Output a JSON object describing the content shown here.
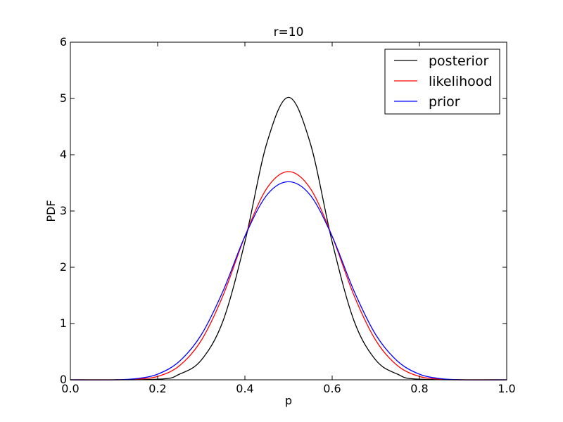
{
  "chart_data": {
    "type": "line",
    "title": "r=10",
    "xlabel": "p",
    "ylabel": "PDF",
    "xlim": [
      0.0,
      1.0
    ],
    "ylim": [
      0,
      6
    ],
    "x_ticks": [
      "0.0",
      "0.2",
      "0.4",
      "0.6",
      "0.8",
      "1.0"
    ],
    "y_ticks": [
      "0",
      "1",
      "2",
      "3",
      "4",
      "5",
      "6"
    ],
    "grid": false,
    "legend_position": "top-right",
    "series": [
      {
        "name": "posterior",
        "color": "#000000",
        "x": [
          0.0,
          0.2,
          0.25,
          0.3,
          0.35,
          0.4,
          0.45,
          0.5,
          0.55,
          0.6,
          0.65,
          0.7,
          0.75,
          0.8,
          1.0
        ],
        "y": [
          0.0,
          0.01,
          0.1,
          0.35,
          1.05,
          2.45,
          4.2,
          5.02,
          4.2,
          2.45,
          1.05,
          0.35,
          0.1,
          0.01,
          0.0
        ]
      },
      {
        "name": "likelihood",
        "color": "#ff0000",
        "x": [
          0.0,
          0.1,
          0.15,
          0.2,
          0.25,
          0.3,
          0.35,
          0.4,
          0.45,
          0.5,
          0.55,
          0.6,
          0.65,
          0.7,
          0.75,
          0.8,
          0.85,
          0.9,
          1.0
        ],
        "y": [
          0.0,
          0.0,
          0.01,
          0.06,
          0.25,
          0.7,
          1.5,
          2.55,
          3.4,
          3.7,
          3.4,
          2.55,
          1.5,
          0.7,
          0.25,
          0.06,
          0.01,
          0.0,
          0.0
        ]
      },
      {
        "name": "prior",
        "color": "#0000ff",
        "x": [
          0.0,
          0.1,
          0.15,
          0.2,
          0.25,
          0.3,
          0.35,
          0.4,
          0.45,
          0.5,
          0.55,
          0.6,
          0.65,
          0.7,
          0.75,
          0.8,
          0.85,
          0.9,
          1.0
        ],
        "y": [
          0.0,
          0.0,
          0.02,
          0.1,
          0.33,
          0.8,
          1.58,
          2.55,
          3.28,
          3.52,
          3.28,
          2.55,
          1.58,
          0.8,
          0.33,
          0.1,
          0.02,
          0.0,
          0.0
        ]
      }
    ]
  }
}
